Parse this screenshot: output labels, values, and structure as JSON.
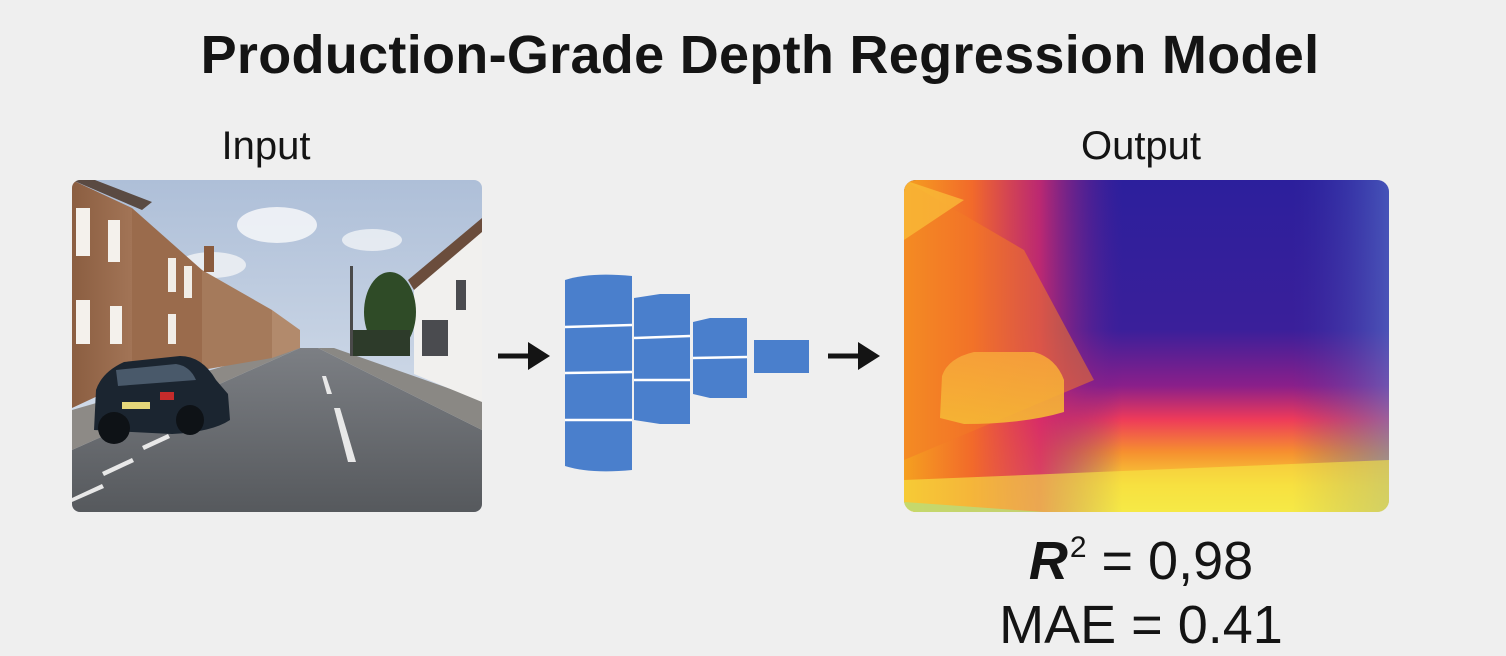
{
  "title": "Production-Grade Depth Regression Model",
  "input_label": "Input",
  "output_label": "Output",
  "metrics": {
    "r2_symbol": "R",
    "r2_exponent": "2",
    "r2_text": " = 0,98",
    "mae_text": "MAE = 0.41"
  },
  "colors": {
    "background": "#efefef",
    "network_block": "#4a7fcc",
    "network_block_edge": "#ffffff",
    "arrow": "#141414",
    "depth_near": "#f7e33c",
    "depth_mid": "#f0327a",
    "depth_far": "#2f21a0"
  },
  "icons": {
    "flow_arrow": "arrow-right-icon"
  }
}
